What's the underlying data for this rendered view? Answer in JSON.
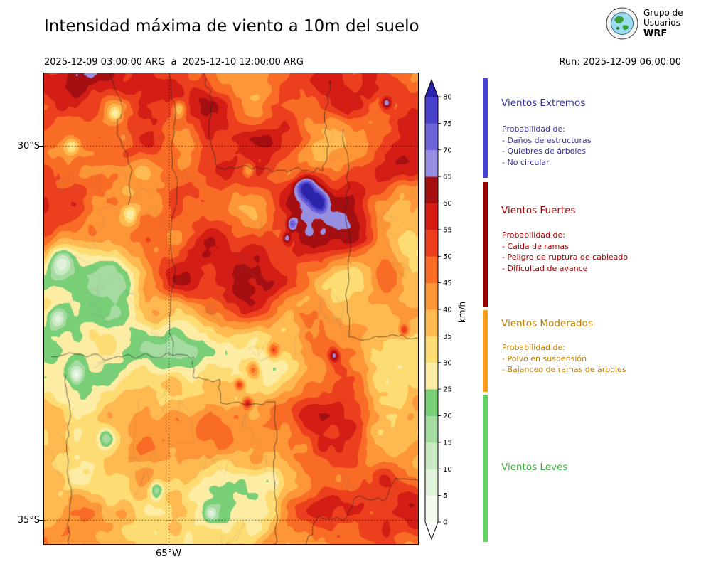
{
  "header": {
    "title": "Intensidad máxima de viento a 10m del suelo",
    "period": "2025-12-09 03:00:00 ARG  a  2025-12-10 12:00:00 ARG",
    "run_label": "Run: 2025-12-09 06:00:00",
    "logo": {
      "line1": "Grupo de",
      "line2": "Usuarios",
      "line3": "WRF",
      "globe_icon": "globe-icon"
    }
  },
  "map_axes": {
    "lat_ticks": [
      {
        "label": "30°S"
      },
      {
        "label": "35°S"
      }
    ],
    "lon_ticks": [
      {
        "label": "65°W"
      }
    ]
  },
  "legend": {
    "sections": [
      {
        "id": "extremos",
        "title": "Vientos Extremos",
        "text_color": "#333399",
        "bar_color": "#4343d9",
        "prob_label": "Probabilidad de:",
        "items": [
          "- Daños de estructuras",
          "- Quiebres de árboles",
          "- No circular"
        ]
      },
      {
        "id": "fuertes",
        "title": "Vientos Fuertes",
        "text_color": "#a80000",
        "bar_color": "#990000",
        "prob_label": "Probabilidad de:",
        "items": [
          "- Caida de ramas",
          "- Peligro de ruptura de cableado",
          "- Dificultad de avance"
        ]
      },
      {
        "id": "moderados",
        "title": "Vientos Moderados",
        "text_color": "#bf7d00",
        "bar_color": "#ff9d14",
        "prob_label": "Probabilidad de:",
        "items": [
          "- Polvo en suspensión",
          "- Balanceo de ramas de árboles"
        ]
      },
      {
        "id": "leves",
        "title": "Vientos Leves",
        "text_color": "#3fae3f",
        "bar_color": "#5cd65c",
        "prob_label": "",
        "items": []
      }
    ]
  },
  "chart_data": {
    "type": "heatmap",
    "title": "Intensidad máxima de viento a 10m del suelo",
    "period_start": "2025-12-09 03:00:00 ARG",
    "period_end": "2025-12-10 12:00:00 ARG",
    "run": "2025-12-09 06:00:00",
    "unit": "km/h",
    "axes": {
      "y_ticks": [
        "30°S",
        "35°S"
      ],
      "x_ticks": [
        "65°W"
      ],
      "gridlines": "dotted at 30°S, 35°S and 65°W"
    },
    "colorbar": {
      "orientation": "vertical",
      "extend": "both",
      "levels": [
        0,
        5,
        10,
        15,
        20,
        25,
        30,
        35,
        40,
        45,
        50,
        55,
        60,
        65,
        70,
        75,
        80
      ],
      "tick_labels": [
        "0",
        "5",
        "10",
        "15",
        "20",
        "25",
        "30",
        "35",
        "40",
        "45",
        "50",
        "55",
        "60",
        "65",
        "70",
        "75",
        "80"
      ],
      "colors": [
        "#f1faed",
        "#e0f3da",
        "#c9e9c2",
        "#a5dba1",
        "#78cf78",
        "#fdeca4",
        "#fedc74",
        "#feba50",
        "#fd9637",
        "#f96c25",
        "#ec3f1e",
        "#d31d15",
        "#a60f12",
        "#9790e2",
        "#6f64d8",
        "#4a42ca",
        "#2b24aa"
      ],
      "under_color": "#ffffff"
    },
    "categories": [
      {
        "name": "Vientos Leves",
        "range_kmh": [
          0,
          25
        ],
        "color": "#5cd65c"
      },
      {
        "name": "Vientos Moderados",
        "range_kmh": [
          25,
          40
        ],
        "color": "#ff9d14"
      },
      {
        "name": "Vientos Fuertes",
        "range_kmh": [
          40,
          65
        ],
        "color": "#990000"
      },
      {
        "name": "Vientos Extremos",
        "range_kmh": [
          65,
          85
        ],
        "color": "#4343d9"
      }
    ],
    "description": "Filled-contour maximum wind field over central Argentina; mostly 35-60 km/h (orange/red), strongest >65 km/h pockets (blue/violet) in the northeast quadrant and scattered small cores near the center; light-wind green patches scattered in the west and south."
  }
}
